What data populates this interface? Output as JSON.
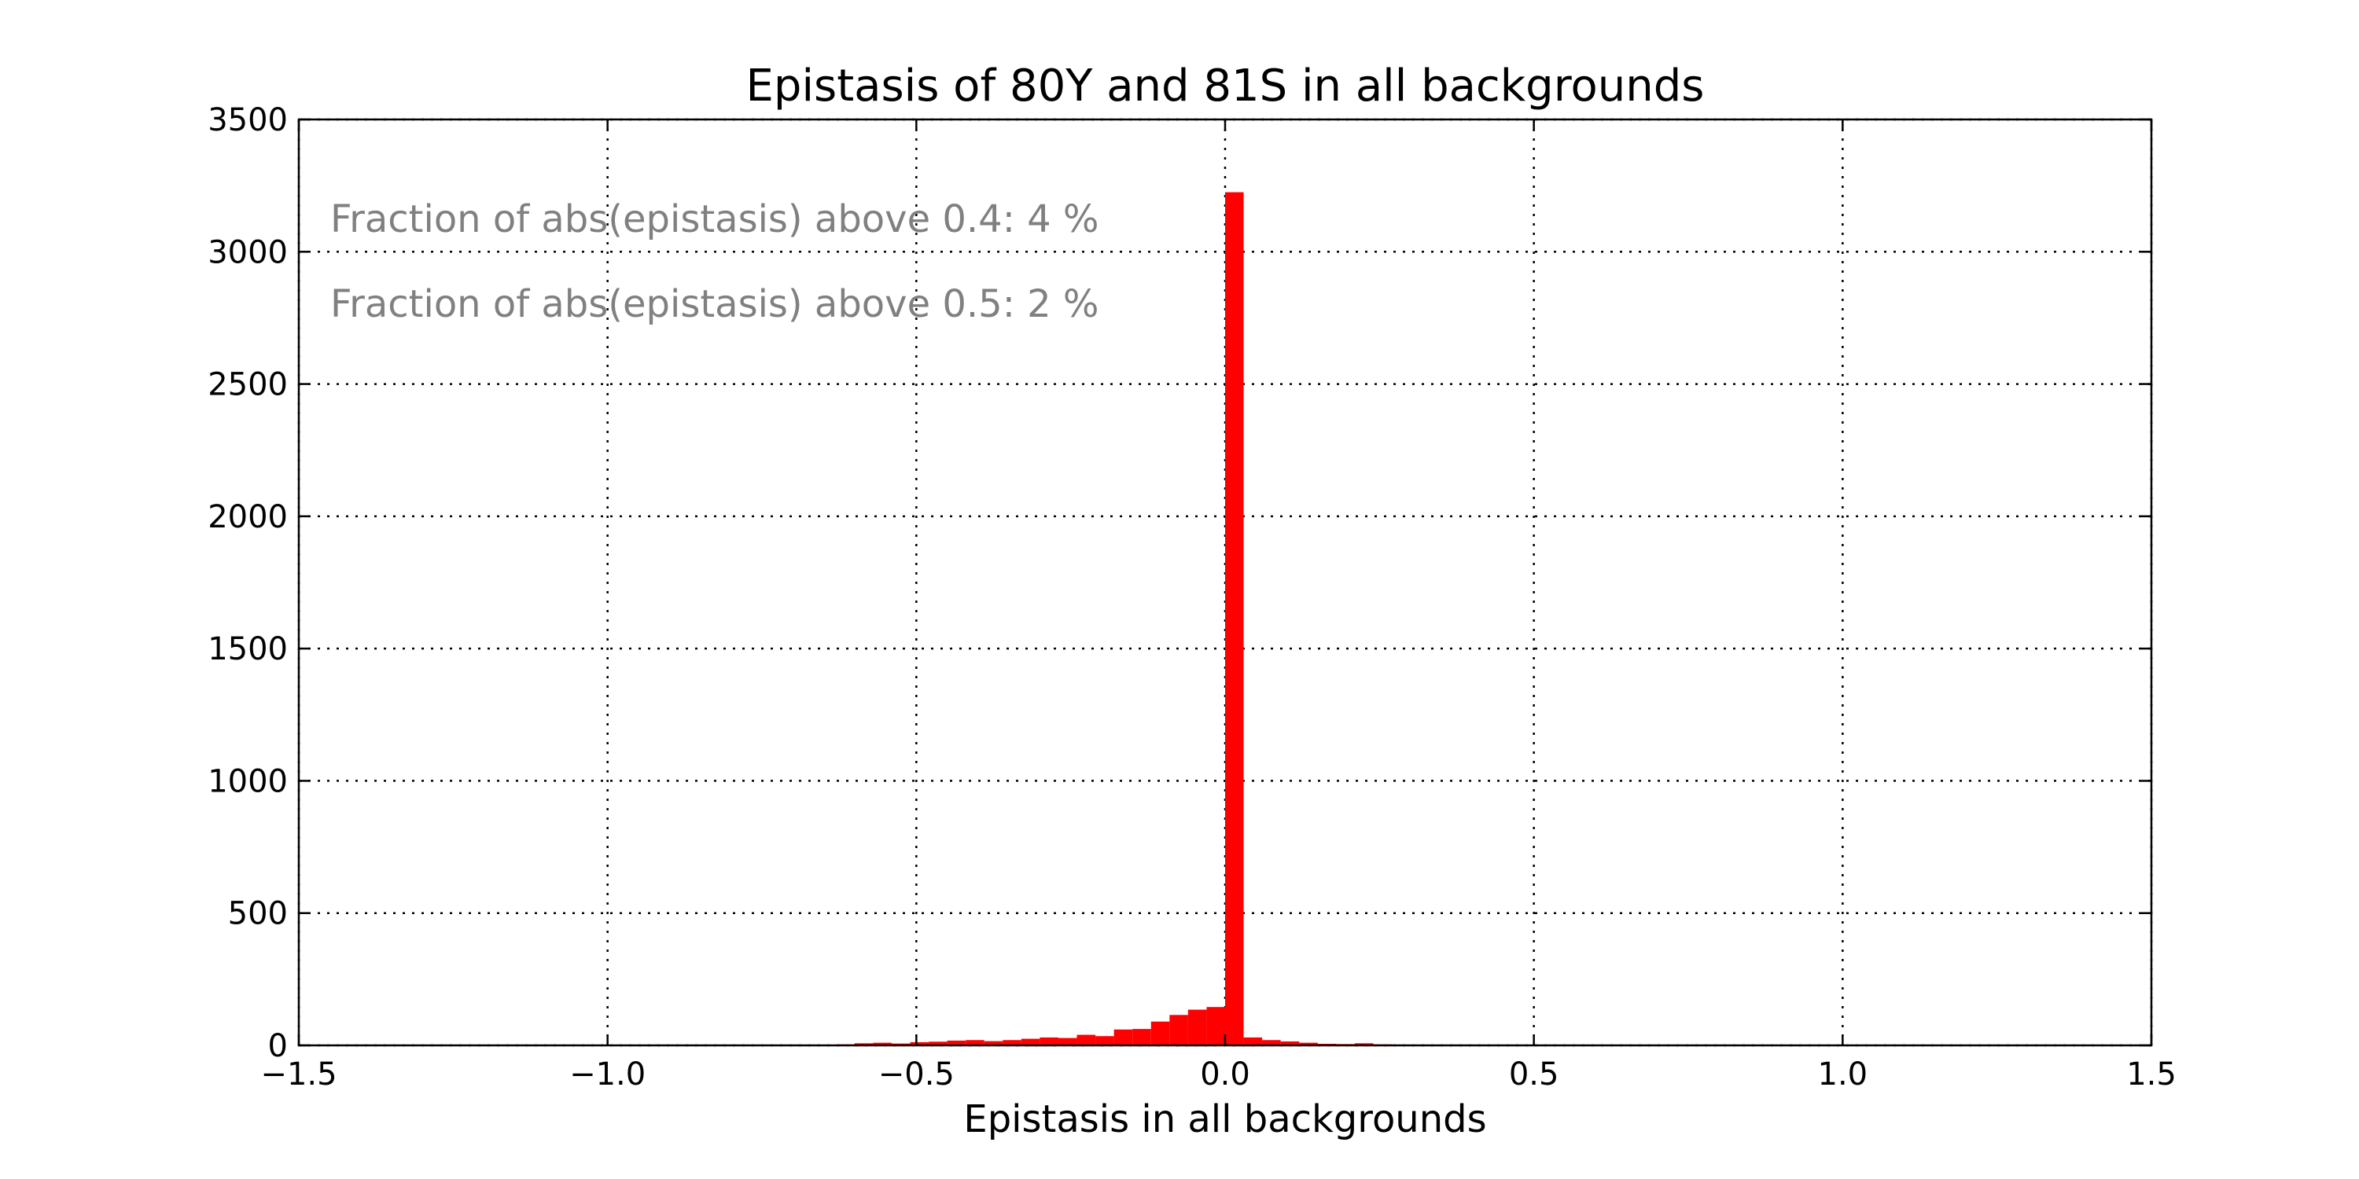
{
  "chart_data": {
    "type": "bar",
    "title": "Epistasis of 80Y and 81S in all backgrounds",
    "xlabel": "Epistasis in all backgrounds",
    "ylabel": "",
    "xlim": [
      -1.5,
      1.5
    ],
    "ylim": [
      0,
      3500
    ],
    "grid": true,
    "bar_color": "#ff0000",
    "bin_width": 0.03,
    "x_ticks": [
      -1.5,
      -1.0,
      -0.5,
      0.0,
      0.5,
      1.0,
      1.5
    ],
    "x_tick_labels": [
      "−1.5",
      "−1.0",
      "−0.5",
      "0.0",
      "0.5",
      "1.0",
      "1.5"
    ],
    "y_ticks": [
      0,
      500,
      1000,
      1500,
      2000,
      2500,
      3000,
      3500
    ],
    "y_tick_labels": [
      "0",
      "500",
      "1000",
      "1500",
      "2000",
      "2500",
      "3000",
      "3500"
    ],
    "annotations": [
      "Fraction of abs(epistasis) above 0.4: 4 %",
      "Fraction of abs(epistasis) above 0.5: 2 %"
    ],
    "annotation_color": "#808080",
    "bins": [
      {
        "x0": -0.72,
        "count": 3
      },
      {
        "x0": -0.69,
        "count": 2
      },
      {
        "x0": -0.63,
        "count": 4
      },
      {
        "x0": -0.6,
        "count": 8
      },
      {
        "x0": -0.57,
        "count": 10
      },
      {
        "x0": -0.54,
        "count": 7
      },
      {
        "x0": -0.51,
        "count": 12
      },
      {
        "x0": -0.48,
        "count": 14
      },
      {
        "x0": -0.45,
        "count": 18
      },
      {
        "x0": -0.42,
        "count": 20
      },
      {
        "x0": -0.39,
        "count": 16
      },
      {
        "x0": -0.36,
        "count": 20
      },
      {
        "x0": -0.33,
        "count": 25
      },
      {
        "x0": -0.3,
        "count": 30
      },
      {
        "x0": -0.27,
        "count": 28
      },
      {
        "x0": -0.24,
        "count": 40
      },
      {
        "x0": -0.21,
        "count": 35
      },
      {
        "x0": -0.18,
        "count": 60
      },
      {
        "x0": -0.15,
        "count": 62
      },
      {
        "x0": -0.12,
        "count": 90
      },
      {
        "x0": -0.09,
        "count": 115
      },
      {
        "x0": -0.06,
        "count": 135
      },
      {
        "x0": -0.03,
        "count": 145
      },
      {
        "x0": 0.0,
        "count": 3225
      },
      {
        "x0": 0.03,
        "count": 30
      },
      {
        "x0": 0.06,
        "count": 20
      },
      {
        "x0": 0.09,
        "count": 15
      },
      {
        "x0": 0.12,
        "count": 10
      },
      {
        "x0": 0.15,
        "count": 6
      },
      {
        "x0": 0.18,
        "count": 5
      },
      {
        "x0": 0.21,
        "count": 8
      },
      {
        "x0": 0.24,
        "count": 4
      },
      {
        "x0": 0.27,
        "count": 3
      }
    ]
  }
}
